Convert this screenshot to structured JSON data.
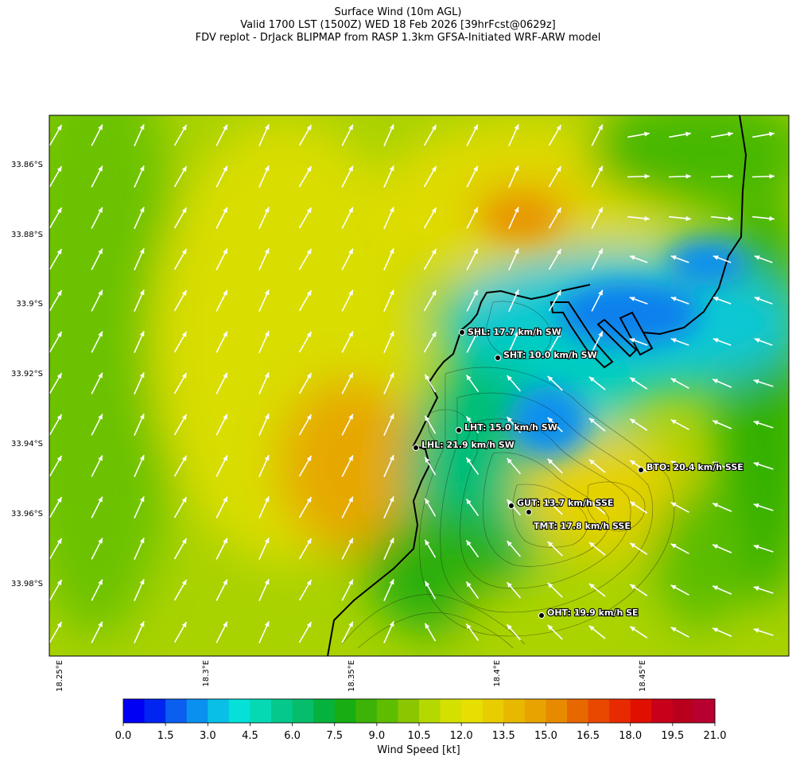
{
  "titles": [
    "Surface Wind (10m AGL)",
    "Valid 1700 LST (1500Z) WED 18 Feb 2026 [39hrFcst@0629z]",
    "FDV replot - DrJack BLIPMAP from RASP 1.3km GFSA-Initiated WRF-ARW model"
  ],
  "lat_ticks": [
    "33.86°S",
    "33.88°S",
    "33.9°S",
    "33.92°S",
    "33.94°S",
    "33.96°S",
    "33.98°S"
  ],
  "lon_ticks": [
    "18.25°E",
    "18.3°E",
    "18.35°E",
    "18.4°E",
    "18.45°E"
  ],
  "stations": [
    {
      "code": "SHL",
      "label": "SHL: 17.7 km/h SW"
    },
    {
      "code": "SHT",
      "label": "SHT: 10.0 km/h SW"
    },
    {
      "code": "LHT",
      "label": "LHT: 15.0 km/h SW"
    },
    {
      "code": "LHL",
      "label": "LHL: 21.9 km/h SW"
    },
    {
      "code": "BTO",
      "label": "BTO: 20.4 km/h SSE"
    },
    {
      "code": "GUT",
      "label": "GUT: 13.7 km/h SSE"
    },
    {
      "code": "TMT",
      "label": "TMT: 17.8 km/h SSE"
    },
    {
      "code": "OHT",
      "label": "OHT: 19.9 km/h SE"
    }
  ],
  "colorbar": {
    "label": "Wind Speed [kt]",
    "ticks": [
      "0.0",
      "1.5",
      "3.0",
      "4.5",
      "6.0",
      "7.5",
      "9.0",
      "10.5",
      "12.0",
      "13.5",
      "15.0",
      "16.5",
      "18.0",
      "19.5",
      "21.0"
    ],
    "colors": [
      "#0000f5",
      "#0025f0",
      "#0a5ff0",
      "#0a90ef",
      "#08bfe6",
      "#05e0d8",
      "#05d9b4",
      "#05c88c",
      "#06bd6c",
      "#05b23e",
      "#18ad12",
      "#3cb306",
      "#5fbd00",
      "#8ac700",
      "#b5d800",
      "#d4e000",
      "#e6df00",
      "#e8cd00",
      "#e8b800",
      "#e8a300",
      "#e88a00",
      "#e86800",
      "#e84800",
      "#e82a00",
      "#e01000",
      "#c8001a",
      "#b8001e",
      "#b80030"
    ]
  }
}
